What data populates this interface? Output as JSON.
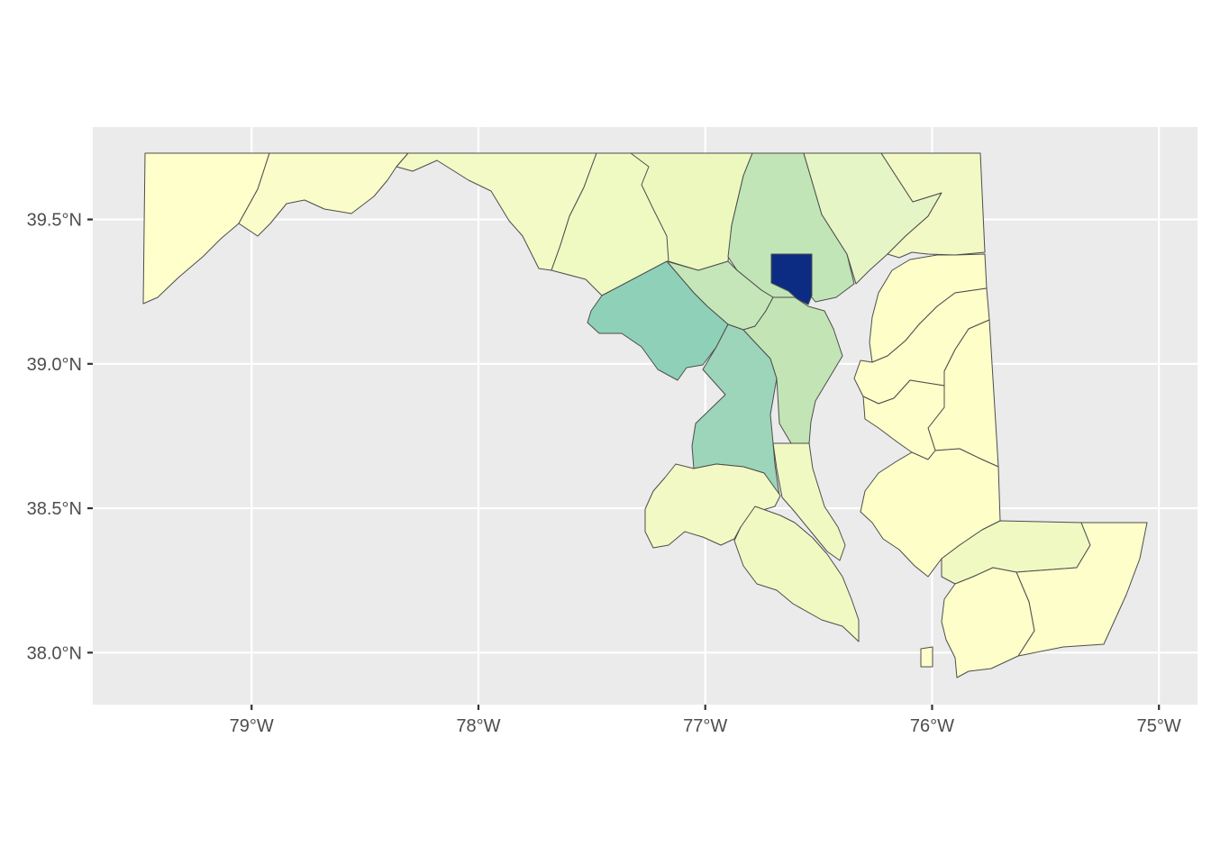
{
  "chart_data": {
    "type": "choropleth",
    "region": "Maryland counties",
    "xlim": [
      -79.7,
      -74.83
    ],
    "ylim": [
      37.82,
      39.82
    ],
    "x_ticks": [
      {
        "value": -79,
        "label": "79°W"
      },
      {
        "value": -78,
        "label": "78°W"
      },
      {
        "value": -77,
        "label": "77°W"
      },
      {
        "value": -76,
        "label": "76°W"
      },
      {
        "value": -75,
        "label": "75°W"
      }
    ],
    "y_ticks": [
      {
        "value": 38.0,
        "label": "38.0°N"
      },
      {
        "value": 38.5,
        "label": "38.5°N"
      },
      {
        "value": 39.0,
        "label": "39.0°N"
      },
      {
        "value": 39.5,
        "label": "39.5°N"
      }
    ],
    "grid": true,
    "legend": "none",
    "colors": {
      "panel_background": "#ebebeb",
      "grid": "#ffffff",
      "border": "#4d4d4d",
      "highest": "#0c2c84",
      "lowest": "#ffffcc"
    }
  }
}
